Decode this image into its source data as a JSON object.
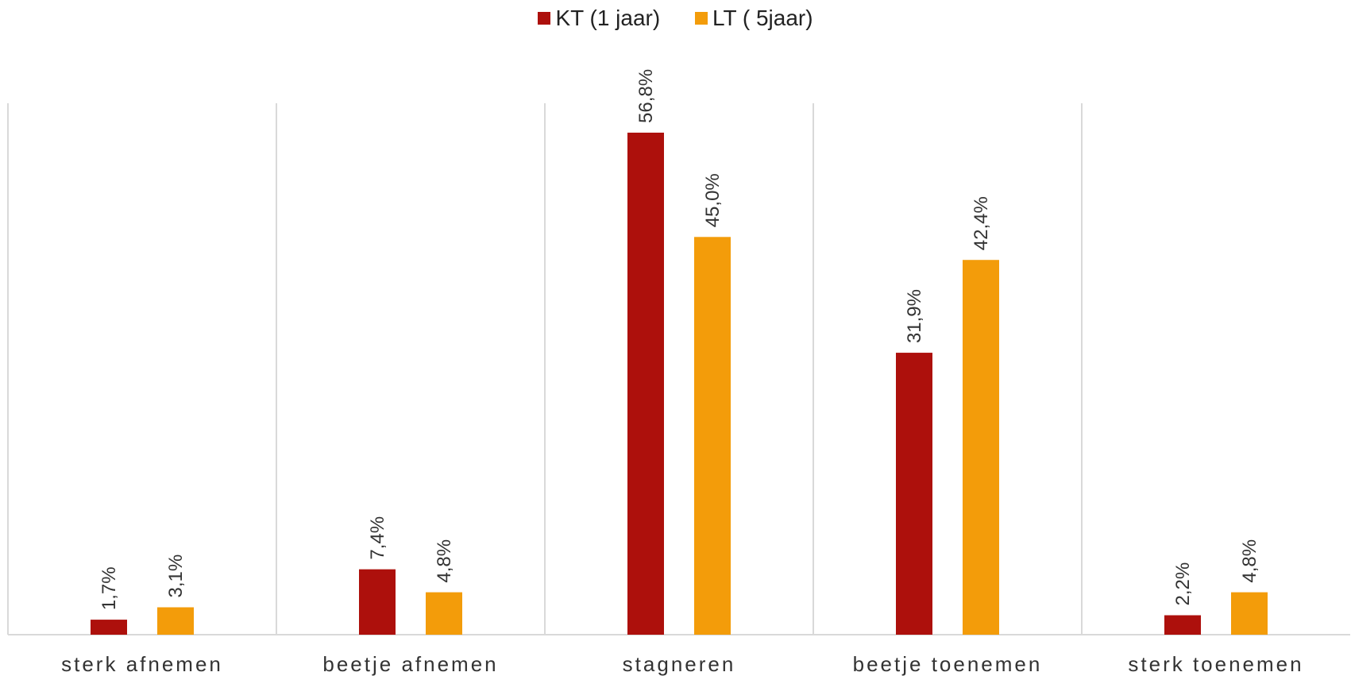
{
  "chart_data": {
    "type": "bar",
    "categories": [
      "sterk afnemen",
      "beetje afnemen",
      "stagneren",
      "beetje toenemen",
      "sterk toenemen"
    ],
    "series": [
      {
        "name": "KT (1 jaar)",
        "color": "#AD100C",
        "values": [
          1.7,
          7.4,
          56.8,
          31.9,
          2.2
        ],
        "labels": [
          "1,7%",
          "7,4%",
          "56,8%",
          "31,9%",
          "2,2%"
        ]
      },
      {
        "name": "LT ( 5jaar)",
        "color": "#F39C0A",
        "values": [
          3.1,
          4.8,
          45.0,
          42.4,
          4.8
        ],
        "labels": [
          "3,1%",
          "4,8%",
          "45,0%",
          "42,4%",
          "4,8%"
        ]
      }
    ],
    "ylim": [
      0,
      60
    ],
    "legend_position": "top-center",
    "grid": "vertical separators between categories"
  }
}
